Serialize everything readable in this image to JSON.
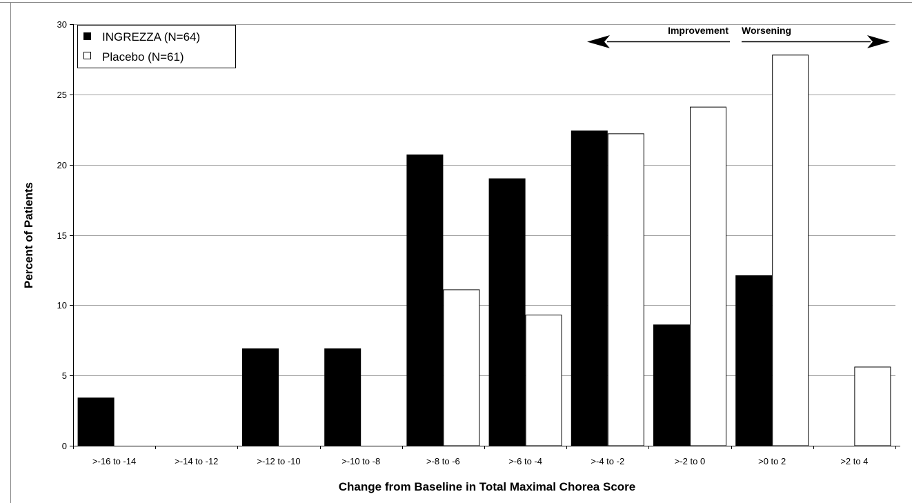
{
  "chart_data": {
    "type": "bar",
    "title": "",
    "xlabel": "Change from Baseline in Total Maximal Chorea Score",
    "ylabel": "Percent of Patients",
    "ylim": [
      0,
      30
    ],
    "yticks": [
      0,
      5,
      10,
      15,
      20,
      25,
      30
    ],
    "grid": "horizontal",
    "legend_position": "top-left",
    "categories": [
      ">-16 to -14",
      ">-14 to -12",
      ">-12 to -10",
      ">-10 to -8",
      ">-8 to -6",
      ">-6 to -4",
      ">-4 to -2",
      ">-2 to 0",
      ">0 to 2",
      ">2 to 4"
    ],
    "series": [
      {
        "name": "INGREZZA (N=64)",
        "color": "#000000",
        "values": [
          3.4,
          0,
          6.9,
          6.9,
          20.7,
          19.0,
          22.4,
          8.6,
          12.1,
          0
        ]
      },
      {
        "name": "Placebo (N=61)",
        "color": "#ffffff",
        "values": [
          0,
          0,
          0,
          0,
          11.1,
          9.3,
          22.2,
          24.1,
          27.8,
          5.6
        ]
      }
    ],
    "annotations": {
      "left": "Improvement",
      "right": "Worsening"
    }
  }
}
